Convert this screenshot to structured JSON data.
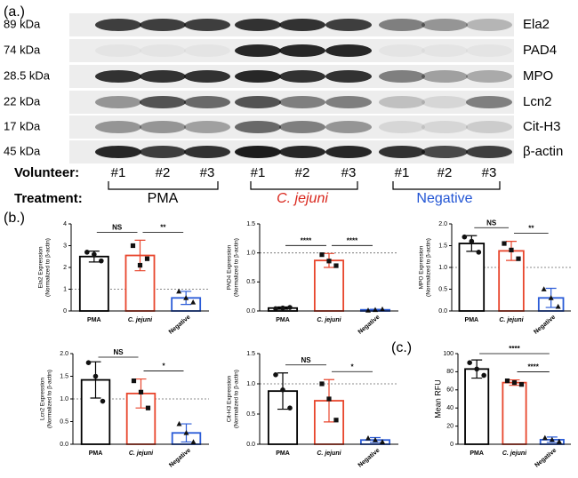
{
  "panels": {
    "a": "(a.)",
    "b": "(b.)",
    "c": "(c.)"
  },
  "blot": {
    "markers": [
      "89 kDa",
      "74 kDa",
      "28.5 kDa",
      "22 kDa",
      "17 kDa",
      "45 kDa"
    ],
    "proteins": [
      "Ela2",
      "PAD4",
      "MPO",
      "Lcn2",
      "Cit-H3",
      "β-actin"
    ],
    "volunteer_label": "Volunteer:",
    "volunteers": [
      "#1",
      "#2",
      "#3",
      "#1",
      "#2",
      "#3",
      "#1",
      "#2",
      "#3"
    ],
    "treatment_label": "Treatment:",
    "treatments": [
      {
        "name": "PMA",
        "color": "#000000",
        "style": "normal"
      },
      {
        "name": "C. jejuni",
        "color": "#d9261c",
        "style": "italic"
      },
      {
        "name": "Negative",
        "color": "#2255d4",
        "style": "normal"
      }
    ]
  },
  "chart_data": [
    {
      "type": "bar",
      "ylabel": [
        "Ela2 Expression",
        "(Normalized to β-actin)"
      ],
      "categories": [
        "PMA",
        "C. jejuni",
        "Negative"
      ],
      "category_styles": [
        "normal",
        "italic",
        "normal"
      ],
      "colors": [
        "#000000",
        "#e8452c",
        "#2a5bd7"
      ],
      "values": [
        2.5,
        2.55,
        0.6
      ],
      "errors": [
        0.25,
        0.7,
        0.3
      ],
      "points": [
        [
          2.7,
          2.3,
          2.6
        ],
        [
          3.0,
          2.4,
          2.1
        ],
        [
          0.9,
          0.4,
          0.6
        ]
      ],
      "ylim": [
        0,
        4
      ],
      "yticks": [
        0,
        1,
        2,
        3,
        4
      ],
      "reference_line": 1,
      "annotations": [
        {
          "label": "NS",
          "between": [
            "PMA",
            "C. jejuni"
          ]
        },
        {
          "label": "**",
          "between": [
            "C. jejuni",
            "Negative"
          ]
        }
      ]
    },
    {
      "type": "bar",
      "ylabel": [
        "PAD4 Expression",
        "(Normalized to β-actin)"
      ],
      "categories": [
        "PMA",
        "C. jejuni",
        "Negative"
      ],
      "category_styles": [
        "normal",
        "italic",
        "normal"
      ],
      "colors": [
        "#000000",
        "#e8452c",
        "#2a5bd7"
      ],
      "values": [
        0.05,
        0.87,
        0.02
      ],
      "errors": [
        0.02,
        0.12,
        0.01
      ],
      "points": [
        [
          0.04,
          0.06,
          0.05
        ],
        [
          0.97,
          0.78,
          0.86
        ],
        [
          0.01,
          0.03,
          0.02
        ]
      ],
      "ylim": [
        0,
        1.5
      ],
      "yticks": [
        {
          "value": 0,
          "label": "0.0"
        },
        {
          "value": 0.5,
          "label": "0.5"
        },
        {
          "value": 1,
          "label": "1.0"
        },
        {
          "value": 1.5,
          "label": "1.5"
        }
      ],
      "reference_line": 1,
      "annotations": [
        {
          "label": "****",
          "between": [
            "PMA",
            "C. jejuni"
          ]
        },
        {
          "label": "****",
          "between": [
            "C. jejuni",
            "Negative"
          ]
        }
      ]
    },
    {
      "type": "bar",
      "ylabel": [
        "MPO Expression",
        "(Normalized to β-actin)"
      ],
      "categories": [
        "PMA",
        "C. jejuni",
        "Negative"
      ],
      "category_styles": [
        "normal",
        "italic",
        "normal"
      ],
      "colors": [
        "#000000",
        "#e8452c",
        "#2a5bd7"
      ],
      "values": [
        1.55,
        1.38,
        0.3
      ],
      "errors": [
        0.18,
        0.22,
        0.22
      ],
      "points": [
        [
          1.7,
          1.35,
          1.6
        ],
        [
          1.55,
          1.2,
          1.4
        ],
        [
          0.5,
          0.1,
          0.3
        ]
      ],
      "ylim": [
        0,
        2
      ],
      "yticks": [
        {
          "value": 0,
          "label": "0.0"
        },
        {
          "value": 0.5,
          "label": "0.5"
        },
        {
          "value": 1,
          "label": "1.0"
        },
        {
          "value": 1.5,
          "label": "1.5"
        },
        {
          "value": 2,
          "label": "2.0"
        }
      ],
      "reference_line": 1,
      "annotations": [
        {
          "label": "NS",
          "between": [
            "PMA",
            "C. jejuni"
          ]
        },
        {
          "label": "**",
          "between": [
            "C. jejuni",
            "Negative"
          ]
        }
      ]
    },
    {
      "type": "bar",
      "ylabel": [
        "Lcn2 Expression",
        "(Normalized to β-actin)"
      ],
      "categories": [
        "PMA",
        "C. jejuni",
        "Negative"
      ],
      "category_styles": [
        "normal",
        "italic",
        "normal"
      ],
      "colors": [
        "#000000",
        "#e8452c",
        "#2a5bd7"
      ],
      "values": [
        1.42,
        1.12,
        0.25
      ],
      "errors": [
        0.4,
        0.32,
        0.2
      ],
      "points": [
        [
          1.8,
          0.95,
          1.5
        ],
        [
          1.4,
          0.8,
          1.15
        ],
        [
          0.45,
          0.05,
          0.25
        ]
      ],
      "ylim": [
        0,
        2
      ],
      "yticks": [
        {
          "value": 0,
          "label": "0.0"
        },
        {
          "value": 0.5,
          "label": "0.5"
        },
        {
          "value": 1,
          "label": "1.0"
        },
        {
          "value": 1.5,
          "label": "1.5"
        },
        {
          "value": 2,
          "label": "2.0"
        }
      ],
      "reference_line": 1,
      "annotations": [
        {
          "label": "NS",
          "between": [
            "PMA",
            "C. jejuni"
          ]
        },
        {
          "label": "*",
          "between": [
            "C. jejuni",
            "Negative"
          ]
        }
      ]
    },
    {
      "type": "bar",
      "ylabel": [
        "Cit-H3 Expression",
        "(Normalized to β-actin)"
      ],
      "categories": [
        "PMA",
        "C. jejuni",
        "Negative"
      ],
      "category_styles": [
        "normal",
        "italic",
        "normal"
      ],
      "colors": [
        "#000000",
        "#e8452c",
        "#2a5bd7"
      ],
      "values": [
        0.88,
        0.72,
        0.07
      ],
      "errors": [
        0.3,
        0.35,
        0.04
      ],
      "points": [
        [
          1.15,
          0.6,
          0.9
        ],
        [
          1.0,
          0.4,
          0.75
        ],
        [
          0.1,
          0.04,
          0.07
        ]
      ],
      "ylim": [
        0,
        1.5
      ],
      "yticks": [
        {
          "value": 0,
          "label": "0.0"
        },
        {
          "value": 0.5,
          "label": "0.5"
        },
        {
          "value": 1,
          "label": "1.0"
        },
        {
          "value": 1.5,
          "label": "1.5"
        }
      ],
      "reference_line": 1,
      "annotations": [
        {
          "label": "NS",
          "between": [
            "PMA",
            "C. jejuni"
          ]
        },
        {
          "label": "*",
          "between": [
            "C. jejuni",
            "Negative"
          ]
        }
      ]
    },
    {
      "type": "bar",
      "ylabel": [
        "Mean RFU"
      ],
      "categories": [
        "PMA",
        "C. jejuni",
        "Negative"
      ],
      "category_styles": [
        "normal",
        "italic",
        "normal"
      ],
      "colors": [
        "#000000",
        "#e8452c",
        "#2a5bd7"
      ],
      "values": [
        83,
        68,
        5
      ],
      "errors": [
        10,
        3,
        3
      ],
      "points": [
        [
          90,
          76,
          83
        ],
        [
          70,
          66,
          68
        ],
        [
          7,
          3,
          5
        ]
      ],
      "ylim": [
        0,
        100
      ],
      "yticks": [
        0,
        20,
        40,
        60,
        80,
        100
      ],
      "annotations": [
        {
          "label": "****",
          "between": [
            "PMA",
            "Negative"
          ]
        },
        {
          "label": "****",
          "between": [
            "C. jejuni",
            "Negative"
          ]
        }
      ]
    }
  ]
}
